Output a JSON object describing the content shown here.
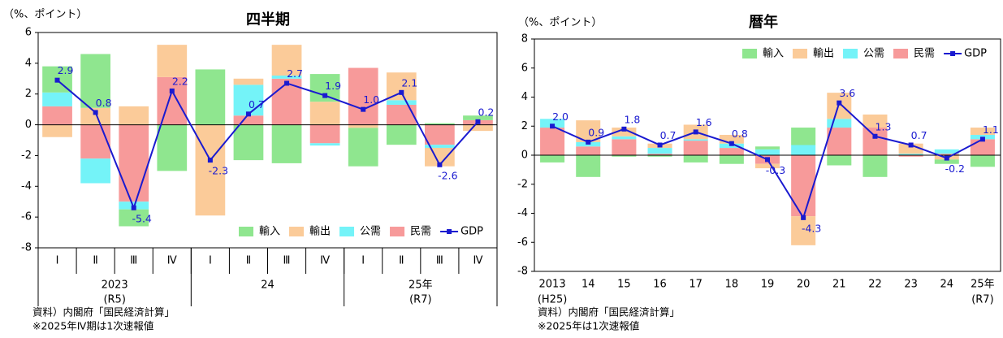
{
  "chart_data": [
    {
      "type": "bar",
      "stacked": true,
      "title": "四半期",
      "y_unit_label": "（%、ポイント）",
      "categories": [
        "Ⅰ",
        "Ⅱ",
        "Ⅲ",
        "Ⅳ",
        "Ⅰ",
        "Ⅱ",
        "Ⅲ",
        "Ⅳ",
        "Ⅰ",
        "Ⅱ",
        "Ⅲ",
        "Ⅳ"
      ],
      "category_groups": [
        "2023",
        "24",
        "25年"
      ],
      "category_group_sublabels": [
        "(R5)",
        null,
        "(R7)"
      ],
      "ylim": [
        -8,
        6
      ],
      "yticks": [
        -8,
        -6,
        -4,
        -2,
        0,
        2,
        4,
        6
      ],
      "legend": "lower right",
      "series": [
        {
          "name": "輸入",
          "color": "#8fe68f",
          "values": [
            1.7,
            3.5,
            -1.1,
            -3.0,
            3.6,
            -2.3,
            -2.5,
            1.8,
            -2.5,
            -1.3,
            0.1,
            0.3
          ]
        },
        {
          "name": "輸出",
          "color": "#fbcb99",
          "values": [
            -0.8,
            1.1,
            1.2,
            2.1,
            -5.9,
            0.4,
            2.0,
            1.5,
            -0.2,
            1.8,
            -1.2,
            -0.4
          ]
        },
        {
          "name": "公需",
          "color": "#74f3f8",
          "values": [
            0.9,
            -1.6,
            -0.5,
            0,
            0,
            2.0,
            0.2,
            -0.15,
            0,
            0.3,
            -0.2,
            0
          ]
        },
        {
          "name": "民需",
          "color": "#f79a9a",
          "values": [
            1.2,
            -2.2,
            -5.0,
            3.1,
            0,
            0.6,
            3.0,
            -1.2,
            3.7,
            1.3,
            -1.3,
            0.3
          ]
        },
        {
          "name": "GDP",
          "type": "line",
          "color": "#1a1ad0",
          "values": [
            2.9,
            0.8,
            -5.4,
            2.2,
            -2.3,
            0.7,
            2.7,
            1.9,
            1.0,
            2.1,
            -2.6,
            0.2
          ],
          "value_labels": [
            "2.9",
            "0.8",
            "-5.4",
            "2.2",
            "-2.3",
            "0.7",
            "2.7",
            "1.9",
            "1.0",
            "2.1",
            "-2.6",
            "0.2"
          ]
        }
      ],
      "notes": [
        "資料）内閣府「国民経済計算」",
        "※2025年Ⅳ期は1次速報値"
      ]
    },
    {
      "type": "bar",
      "stacked": true,
      "title": "暦年",
      "y_unit_label": "（%、ポイント）",
      "categories": [
        "2013",
        "14",
        "15",
        "16",
        "17",
        "18",
        "19",
        "20",
        "21",
        "22",
        "23",
        "24",
        "25年"
      ],
      "category_sublabels": [
        "(H25)",
        null,
        null,
        null,
        null,
        null,
        null,
        null,
        null,
        null,
        null,
        null,
        "(R7)"
      ],
      "ylim": [
        -8,
        8
      ],
      "yticks": [
        -8,
        -6,
        -4,
        -2,
        0,
        2,
        4,
        6,
        8
      ],
      "legend": "upper right",
      "series": [
        {
          "name": "輸入",
          "color": "#8fe68f",
          "values": [
            -0.5,
            -1.5,
            -0.1,
            -0.1,
            -0.5,
            -0.6,
            0.2,
            1.2,
            -0.7,
            -1.5,
            0,
            -0.3,
            -0.8
          ]
        },
        {
          "name": "輸出",
          "color": "#fbcb99",
          "values": [
            0,
            1.5,
            0.6,
            0.3,
            1.0,
            0.6,
            -0.3,
            -2.0,
            1.8,
            0.9,
            0.7,
            -0.3,
            0.5
          ]
        },
        {
          "name": "公需",
          "color": "#74f3f8",
          "values": [
            0.6,
            0.3,
            0.2,
            0.4,
            0.1,
            0.3,
            0.4,
            0.7,
            0.6,
            0,
            0.1,
            0.3,
            0.3
          ]
        },
        {
          "name": "民需",
          "color": "#f79a9a",
          "values": [
            1.9,
            0.6,
            1.1,
            0.1,
            1.0,
            0.5,
            -0.6,
            -4.2,
            1.9,
            1.9,
            -0.1,
            0.1,
            1.1
          ]
        },
        {
          "name": "GDP",
          "type": "line",
          "color": "#1a1ad0",
          "values": [
            2.0,
            0.9,
            1.8,
            0.7,
            1.6,
            0.8,
            -0.3,
            -4.3,
            3.6,
            1.3,
            0.7,
            -0.2,
            1.1
          ],
          "value_labels": [
            "2.0",
            "0.9",
            "1.8",
            "0.7",
            "1.6",
            "0.8",
            "-0.3",
            "-4.3",
            "3.6",
            "1.3",
            "0.7",
            "-0.2",
            "1.1"
          ]
        }
      ],
      "notes": [
        "資料）内閣府「国民経済計算」",
        "※2025年は1次速報値"
      ]
    }
  ]
}
